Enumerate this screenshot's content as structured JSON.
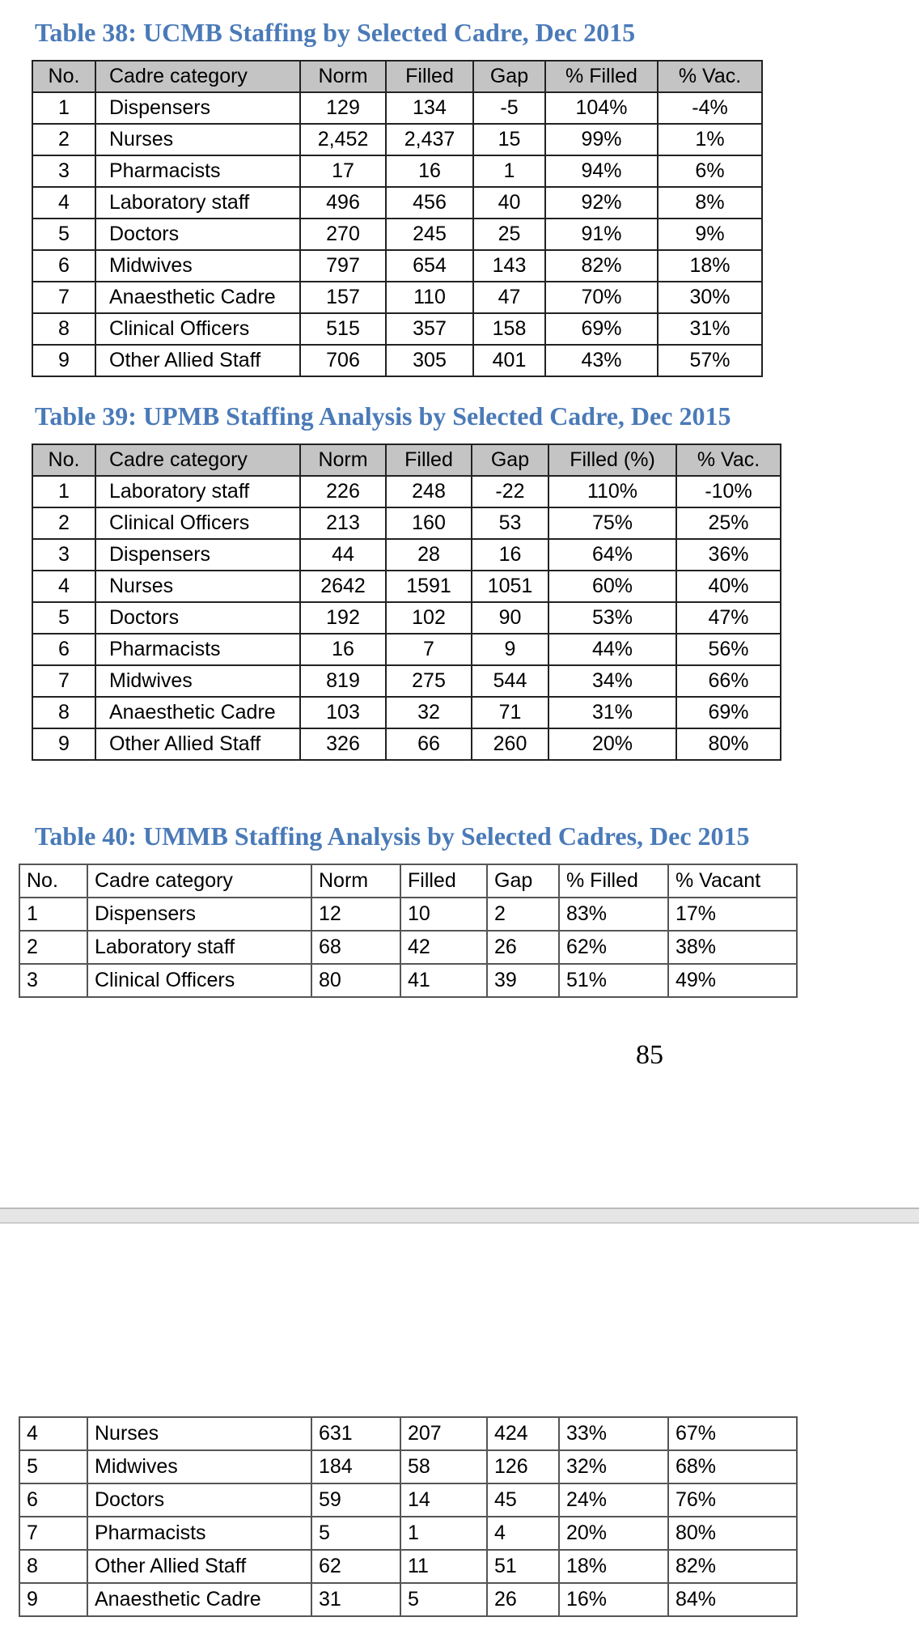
{
  "tables": [
    {
      "title": "Table 38: UCMB Staffing by Selected Cadre, Dec 2015",
      "header": [
        "No.",
        "Cadre category",
        "Norm",
        "Filled",
        "Gap",
        "% Filled",
        "% Vac."
      ],
      "rows": [
        [
          "1",
          "Dispensers",
          "129",
          "134",
          "-5",
          "104%",
          "-4%"
        ],
        [
          "2",
          "Nurses",
          "2,452",
          "2,437",
          "15",
          "99%",
          "1%"
        ],
        [
          "3",
          "Pharmacists",
          "17",
          "16",
          "1",
          "94%",
          "6%"
        ],
        [
          "4",
          "Laboratory staff",
          "496",
          "456",
          "40",
          "92%",
          "8%"
        ],
        [
          "5",
          "Doctors",
          "270",
          "245",
          "25",
          "91%",
          "9%"
        ],
        [
          "6",
          "Midwives",
          "797",
          "654",
          "143",
          "82%",
          "18%"
        ],
        [
          "7",
          "Anaesthetic Cadre",
          "157",
          "110",
          "47",
          "70%",
          "30%"
        ],
        [
          "8",
          "Clinical Officers",
          "515",
          "357",
          "158",
          "69%",
          "31%"
        ],
        [
          "9",
          "Other Allied Staff",
          "706",
          "305",
          "401",
          "43%",
          "57%"
        ]
      ]
    },
    {
      "title": "Table 39: UPMB Staffing Analysis by Selected Cadre, Dec 2015",
      "header": [
        "No.",
        "Cadre category",
        "Norm",
        "Filled",
        "Gap",
        "Filled (%)",
        "% Vac."
      ],
      "rows": [
        [
          "1",
          "Laboratory staff",
          "226",
          "248",
          "-22",
          "110%",
          "-10%"
        ],
        [
          "2",
          "Clinical Officers",
          "213",
          "160",
          "53",
          "75%",
          "25%"
        ],
        [
          "3",
          "Dispensers",
          "44",
          "28",
          "16",
          "64%",
          "36%"
        ],
        [
          "4",
          "Nurses",
          "2642",
          "1591",
          "1051",
          "60%",
          "40%"
        ],
        [
          "5",
          "Doctors",
          "192",
          "102",
          "90",
          "53%",
          "47%"
        ],
        [
          "6",
          "Pharmacists",
          "16",
          "7",
          "9",
          "44%",
          "56%"
        ],
        [
          "7",
          "Midwives",
          "819",
          "275",
          "544",
          "34%",
          "66%"
        ],
        [
          "8",
          "Anaesthetic Cadre",
          "103",
          "32",
          "71",
          "31%",
          "69%"
        ],
        [
          "9",
          "Other Allied Staff",
          "326",
          "66",
          "260",
          "20%",
          "80%"
        ]
      ]
    },
    {
      "title": "Table 40: UMMB Staffing Analysis by Selected Cadres, Dec 2015",
      "header": [
        "No.",
        "Cadre category",
        "Norm",
        "Filled",
        "Gap",
        "% Filled",
        "% Vacant"
      ],
      "rows": [
        [
          "1",
          "Dispensers",
          "12",
          "10",
          "2",
          "83%",
          "17%"
        ],
        [
          "2",
          "Laboratory staff",
          "68",
          "42",
          "26",
          "62%",
          "38%"
        ],
        [
          "3",
          "Clinical Officers",
          "80",
          "41",
          "39",
          "51%",
          "49%"
        ]
      ]
    }
  ],
  "page_number": "85",
  "continued_rows": [
    [
      "4",
      "Nurses",
      "631",
      "207",
      "424",
      "33%",
      "67%"
    ],
    [
      "5",
      "Midwives",
      "184",
      "58",
      "126",
      "32%",
      "68%"
    ],
    [
      "6",
      "Doctors",
      "59",
      "14",
      "45",
      "24%",
      "76%"
    ],
    [
      "7",
      "Pharmacists",
      "5",
      "1",
      "4",
      "20%",
      "80%"
    ],
    [
      "8",
      "Other Allied Staff",
      "62",
      "11",
      "51",
      "18%",
      "82%"
    ],
    [
      "9",
      "Anaesthetic Cadre",
      "31",
      "5",
      "26",
      "16%",
      "84%"
    ]
  ]
}
